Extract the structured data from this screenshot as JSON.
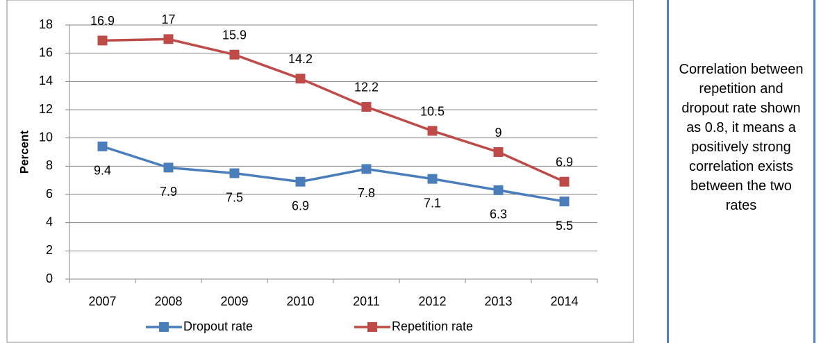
{
  "chart_data": {
    "type": "line",
    "y_label": "Percent",
    "categories": [
      "2007",
      "2008",
      "2009",
      "2010",
      "2011",
      "2012",
      "2013",
      "2014"
    ],
    "series": [
      {
        "name": "Dropout rate",
        "color": "#4a7ebb",
        "values": [
          9.4,
          7.9,
          7.5,
          6.9,
          7.8,
          7.1,
          6.3,
          5.5
        ]
      },
      {
        "name": "Repetition rate",
        "color": "#be4b48",
        "values": [
          16.9,
          17,
          15.9,
          14.2,
          12.2,
          10.5,
          9,
          6.9
        ]
      }
    ],
    "ylim": [
      0,
      18
    ],
    "yticks": [
      0,
      2,
      4,
      6,
      8,
      10,
      12,
      14,
      16,
      18
    ],
    "grid": true,
    "legend": "bottom",
    "annotation": "Correlation between repetition and dropout rate shown as 0.8, it means a positively strong correlation exists between the two rates"
  }
}
